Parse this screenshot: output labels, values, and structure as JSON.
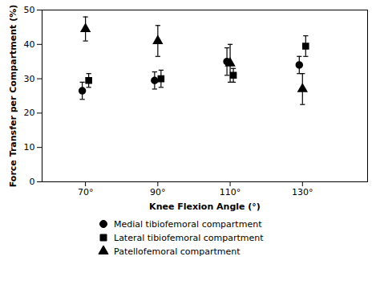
{
  "chart_data": {
    "type": "errorbar",
    "x": [
      70,
      90,
      110,
      130
    ],
    "xlabel": "Knee Flexion Angle (°)",
    "ylabel": "Force Transfer per Compartment (%)",
    "xlim": [
      58,
      148
    ],
    "xticks": [
      {
        "value": 70,
        "label": "70°"
      },
      {
        "value": 90,
        "label": "90°"
      },
      {
        "value": 110,
        "label": "110°"
      },
      {
        "value": 130,
        "label": "130°"
      }
    ],
    "ylim": [
      0,
      50
    ],
    "yticks": [
      0,
      10,
      20,
      30,
      40,
      50
    ],
    "grid": false,
    "legend": "bottom",
    "series": [
      {
        "name": "Medial tibiofemoral compartment",
        "color": "black",
        "marker": "o",
        "values": [
          26.5,
          29.5,
          35.0,
          34.0
        ],
        "error_lo": [
          2.5,
          2.5,
          4.0,
          2.5
        ],
        "error_hi": [
          2.5,
          2.5,
          4.0,
          2.5
        ]
      },
      {
        "name": "Lateral tibiofemoral compartment",
        "color": "black",
        "marker": "s",
        "values": [
          29.5,
          30.0,
          31.0,
          39.5
        ],
        "error_lo": [
          2.0,
          2.5,
          2.0,
          3.0
        ],
        "error_hi": [
          2.0,
          2.5,
          2.0,
          3.0
        ]
      },
      {
        "name": "Patellofemoral compartment",
        "color": "black",
        "marker": "^",
        "values": [
          44.5,
          41.0,
          34.5,
          27.0
        ],
        "error_lo": [
          3.5,
          4.5,
          5.5,
          4.5
        ],
        "error_hi": [
          3.5,
          4.5,
          5.5,
          4.5
        ]
      }
    ]
  }
}
